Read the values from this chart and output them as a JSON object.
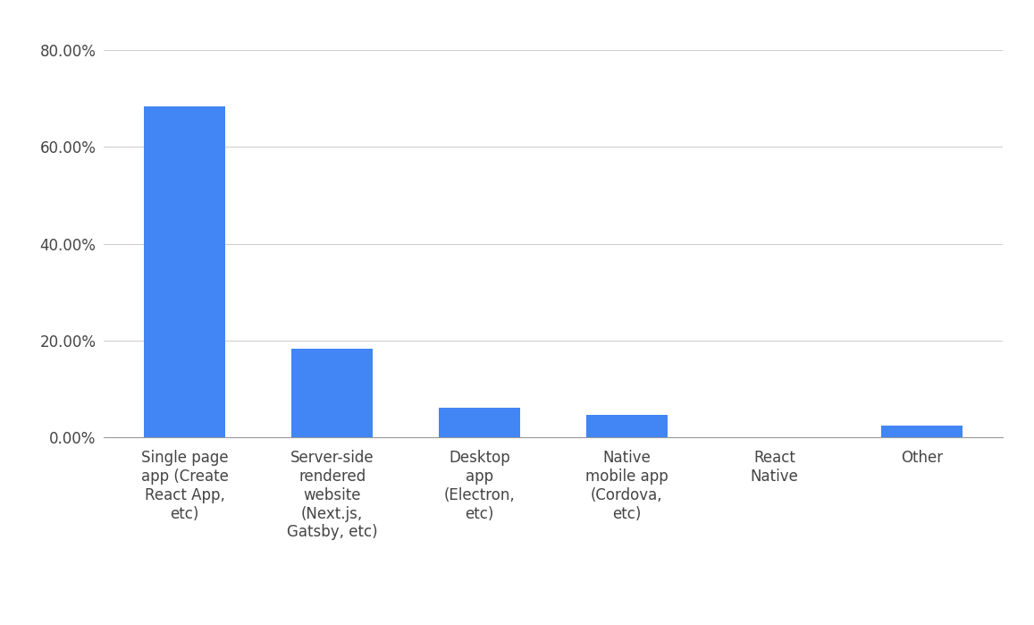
{
  "categories": [
    "Single page\napp (Create\nReact App,\netc)",
    "Server-side\nrendered\nwebsite\n(Next.js,\nGatsby, etc)",
    "Desktop\napp\n(Electron,\netc)",
    "Native\nmobile app\n(Cordova,\netc)",
    "React\nNative",
    "Other"
  ],
  "values": [
    68.37,
    18.24,
    6.22,
    4.65,
    0.1,
    2.4
  ],
  "bar_color": "#4285F4",
  "background_color": "#ffffff",
  "ylim_max": 80,
  "yticks": [
    0,
    20,
    40,
    60,
    80
  ],
  "ytick_labels": [
    "0.00%",
    "20.00%",
    "40.00%",
    "60.00%",
    "80.00%"
  ],
  "grid_color": "#d0d0d0",
  "tick_color": "#444444",
  "label_fontsize": 12,
  "tick_fontsize": 12,
  "bar_width": 0.55
}
